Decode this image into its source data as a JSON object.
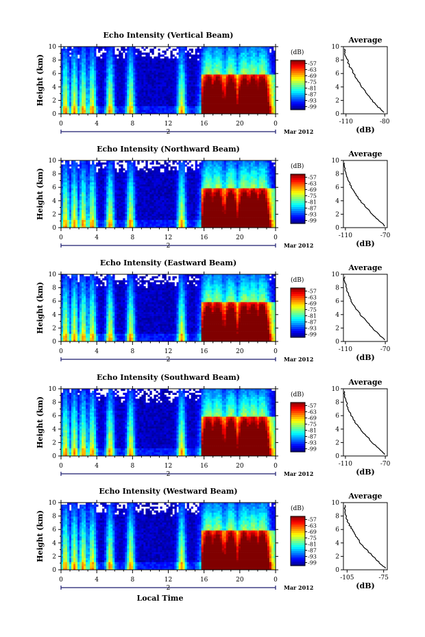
{
  "chart_data": [
    {
      "type": "heatmap",
      "title": "Echo Intensity (Vertical Beam)",
      "ylabel": "Height (km)",
      "x_ticks": [
        "0",
        "4",
        "8",
        "12",
        "16",
        "20",
        "0"
      ],
      "y_ticks": [
        "0",
        "2",
        "4",
        "6",
        "8",
        "10"
      ],
      "ylim": [
        0,
        10
      ],
      "xlim_hours": [
        0,
        24
      ],
      "date_marker": "2",
      "date_label": "Mar 2012",
      "colorbar": {
        "unit": "(dB)",
        "ticks": [
          "-57",
          "-63",
          "-69",
          "-75",
          "-81",
          "-87",
          "-93",
          "-99"
        ],
        "range": [
          -102,
          -54
        ]
      },
      "average": {
        "title": "Average",
        "xlabel": "(dB)",
        "xticks": [
          "-110",
          "-80"
        ],
        "xlim": [
          -112,
          -78
        ],
        "height_km": [
          0.2,
          1,
          2,
          3,
          4,
          5,
          6,
          7,
          8,
          9,
          9.8
        ],
        "db": [
          -80,
          -85,
          -90,
          -94,
          -98,
          -101,
          -104,
          -107,
          -109,
          -111,
          -111
        ]
      },
      "echo_bursts_hours": [
        0.5,
        1.5,
        2.5,
        3.5,
        5.5,
        7.8,
        13.5,
        16.5,
        17.5,
        19,
        20.5,
        21.5,
        22.5
      ]
    },
    {
      "type": "heatmap",
      "title": "Echo Intensity (Northward Beam)",
      "ylabel": "Height (km)",
      "x_ticks": [
        "0",
        "4",
        "8",
        "12",
        "16",
        "20",
        "0"
      ],
      "y_ticks": [
        "0",
        "2",
        "4",
        "6",
        "8",
        "10"
      ],
      "ylim": [
        0,
        10
      ],
      "xlim_hours": [
        0,
        24
      ],
      "date_marker": "2",
      "date_label": "Mar 2012",
      "colorbar": {
        "unit": "(dB)",
        "ticks": [
          "-57",
          "-63",
          "-69",
          "-75",
          "-81",
          "-87",
          "-93",
          "-99"
        ],
        "range": [
          -102,
          -54
        ]
      },
      "average": {
        "title": "Average",
        "xlabel": "(dB)",
        "xticks": [
          "-110",
          "-70"
        ],
        "xlim": [
          -112,
          -68
        ],
        "height_km": [
          0.2,
          1,
          2,
          3,
          4,
          5,
          6,
          7,
          8,
          9,
          9.8
        ],
        "db": [
          -70,
          -76,
          -83,
          -89,
          -95,
          -100,
          -104,
          -107,
          -109,
          -111,
          -111
        ]
      },
      "echo_bursts_hours": [
        0.5,
        1.5,
        2.5,
        3.5,
        5.5,
        7.8,
        13.5,
        16.5,
        17.5,
        19,
        20.5,
        21.5,
        22.5
      ]
    },
    {
      "type": "heatmap",
      "title": "Echo Intensity (Eastward Beam)",
      "ylabel": "Height (km)",
      "x_ticks": [
        "0",
        "4",
        "8",
        "12",
        "16",
        "20",
        "0"
      ],
      "y_ticks": [
        "0",
        "2",
        "4",
        "6",
        "8",
        "10"
      ],
      "ylim": [
        0,
        10
      ],
      "xlim_hours": [
        0,
        24
      ],
      "date_marker": "2",
      "date_label": "Mar 2012",
      "colorbar": {
        "unit": "(dB)",
        "ticks": [
          "-57",
          "-63",
          "-69",
          "-75",
          "-81",
          "-87",
          "-93",
          "-99"
        ],
        "range": [
          -102,
          -54
        ]
      },
      "average": {
        "title": "Average",
        "xlabel": "(dB)",
        "xticks": [
          "-110",
          "-70"
        ],
        "xlim": [
          -112,
          -68
        ],
        "height_km": [
          0.2,
          1,
          2,
          3,
          4,
          5,
          6,
          7,
          8,
          9,
          9.8
        ],
        "db": [
          -70,
          -76,
          -83,
          -89,
          -95,
          -100,
          -104,
          -107,
          -109,
          -111,
          -111
        ]
      },
      "echo_bursts_hours": [
        0.5,
        1.5,
        2.5,
        3.5,
        5.5,
        7.8,
        13.5,
        16.5,
        17.5,
        19,
        20.5,
        21.5,
        22.5
      ]
    },
    {
      "type": "heatmap",
      "title": "Echo Intensity (Southward Beam)",
      "ylabel": "Height (km)",
      "x_ticks": [
        "0",
        "4",
        "8",
        "12",
        "16",
        "20",
        "0"
      ],
      "y_ticks": [
        "0",
        "2",
        "4",
        "6",
        "8",
        "10"
      ],
      "ylim": [
        0,
        10
      ],
      "xlim_hours": [
        0,
        24
      ],
      "date_marker": "2",
      "date_label": "Mar 2012",
      "colorbar": {
        "unit": "(dB)",
        "ticks": [
          "-57",
          "-63",
          "-69",
          "-75",
          "-81",
          "-87",
          "-93",
          "-99"
        ],
        "range": [
          -102,
          -54
        ]
      },
      "average": {
        "title": "Average",
        "xlabel": "(dB)",
        "xticks": [
          "-110",
          "-70"
        ],
        "xlim": [
          -112,
          -68
        ],
        "height_km": [
          0.2,
          1,
          2,
          3,
          4,
          5,
          6,
          7,
          8,
          9,
          9.8
        ],
        "db": [
          -70,
          -76,
          -83,
          -89,
          -95,
          -100,
          -104,
          -107,
          -109,
          -111,
          -111
        ]
      },
      "echo_bursts_hours": [
        0.5,
        1.5,
        2.5,
        3.5,
        5.5,
        7.8,
        13.5,
        16.5,
        17.5,
        19,
        20.5,
        21.5,
        22.5
      ]
    },
    {
      "type": "heatmap",
      "title": "Echo Intensity (Westward Beam)",
      "ylabel": "Height (km)",
      "x_ticks": [
        "0",
        "4",
        "8",
        "12",
        "16",
        "20",
        "0"
      ],
      "y_ticks": [
        "0",
        "2",
        "4",
        "6",
        "8",
        "10"
      ],
      "ylim": [
        0,
        10
      ],
      "xlim_hours": [
        0,
        24
      ],
      "date_marker": "2",
      "date_label": "Mar 2012",
      "xlabel": "Local Time",
      "colorbar": {
        "unit": "(dB)",
        "ticks": [
          "-57",
          "-63",
          "-69",
          "-75",
          "-81",
          "-87",
          "-93",
          "-99"
        ],
        "range": [
          -102,
          -54
        ]
      },
      "average": {
        "title": "Average",
        "xlabel": "(dB)",
        "xticks": [
          "-105",
          "-75"
        ],
        "xlim": [
          -108,
          -72
        ],
        "height_km": [
          0.2,
          1,
          2,
          3,
          4,
          5,
          6,
          7,
          8,
          9,
          9.8
        ],
        "db": [
          -73,
          -78,
          -84,
          -89,
          -94,
          -98,
          -101,
          -104,
          -106,
          -107,
          -107
        ]
      },
      "echo_bursts_hours": [
        0.5,
        1.5,
        2.5,
        3.5,
        5.5,
        7.8,
        13.5,
        16.5,
        17.5,
        19,
        20.5,
        21.5,
        22.5
      ]
    }
  ]
}
